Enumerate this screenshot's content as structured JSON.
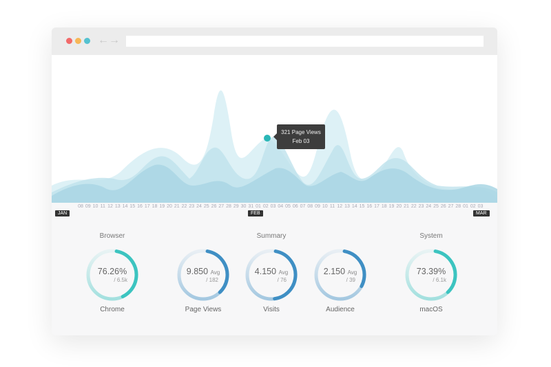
{
  "window": {
    "controls": [
      "close",
      "minimize",
      "maximize"
    ],
    "colors": [
      "#f26a6a",
      "#f7b757",
      "#55c2d0"
    ],
    "nav": {
      "back": "←",
      "forward": "→"
    },
    "url": ""
  },
  "chart": {
    "tooltip": {
      "line1": "321 Page Views",
      "line2": "Feb 03"
    },
    "days": [
      "08",
      "09",
      "10",
      "11",
      "12",
      "13",
      "14",
      "15",
      "16",
      "17",
      "18",
      "19",
      "20",
      "21",
      "22",
      "23",
      "24",
      "25",
      "26",
      "27",
      "28",
      "29",
      "30",
      "31",
      "01",
      "02",
      "03",
      "04",
      "05",
      "06",
      "07",
      "08",
      "09",
      "10",
      "11",
      "12",
      "13",
      "14",
      "15",
      "16",
      "17",
      "18",
      "19",
      "20",
      "21",
      "22",
      "23",
      "24",
      "25",
      "26",
      "27",
      "28",
      "01",
      "02",
      "03"
    ],
    "months": [
      "JAN",
      "FEB",
      "MAR"
    ]
  },
  "sections": {
    "browser": "Browser",
    "summary": "Summary",
    "system": "System"
  },
  "rings": [
    {
      "value": "76.26%",
      "avg": "",
      "sub": "/ 6.5k",
      "label": "Chrome",
      "color": "#3cc4c0",
      "fraction": 0.4
    },
    {
      "value": "9.850",
      "avg": "Avg",
      "sub": "/ 182",
      "label": "Page Views",
      "color": "#3f8fc4",
      "fraction": 0.35
    },
    {
      "value": "4.150",
      "avg": "Avg",
      "sub": "/ 76",
      "label": "Visits",
      "color": "#3f8fc4",
      "fraction": 0.45
    },
    {
      "value": "2.150",
      "avg": "Avg",
      "sub": "/ 39",
      "label": "Audience",
      "color": "#3f8fc4",
      "fraction": 0.3
    },
    {
      "value": "73.39%",
      "avg": "",
      "sub": "/ 6.1k",
      "label": "macOS",
      "color": "#3cc4c0",
      "fraction": 0.35
    }
  ]
}
